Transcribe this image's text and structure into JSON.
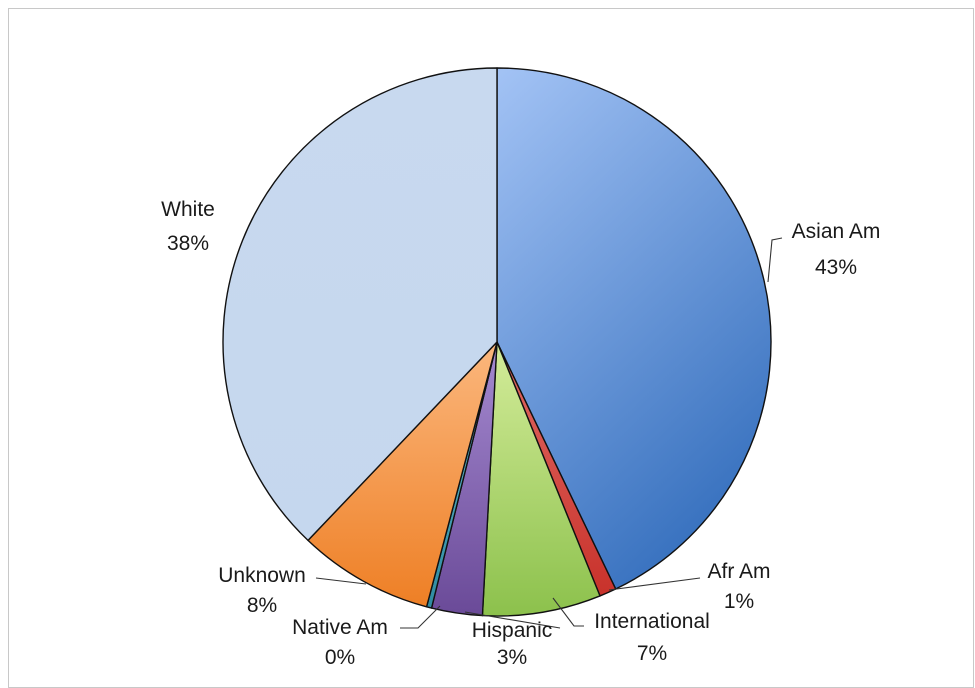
{
  "chart_data": {
    "type": "pie",
    "title": "",
    "slices": [
      {
        "label": "Asian Am",
        "value": 43,
        "percent_label": "43%",
        "color": "#5b8fd6"
      },
      {
        "label": "Afr Am",
        "value": 1,
        "percent_label": "1%",
        "color": "#d6403a"
      },
      {
        "label": "International",
        "value": 7,
        "percent_label": "7%",
        "color": "#9ccc5a"
      },
      {
        "label": "Hispanic",
        "value": 3,
        "percent_label": "3%",
        "color": "#7d5ea8"
      },
      {
        "label": "Native Am",
        "value": 0.3,
        "percent_label": "0%",
        "color": "#3a9fb5"
      },
      {
        "label": "Unknown",
        "value": 8,
        "percent_label": "8%",
        "color": "#f3923e"
      },
      {
        "label": "White",
        "value": 38,
        "percent_label": "38%",
        "color": "#c6d8ef"
      }
    ],
    "start_angle": "12 o'clock",
    "direction": "clockwise",
    "legend": "none",
    "data_labels": "category and percent"
  }
}
